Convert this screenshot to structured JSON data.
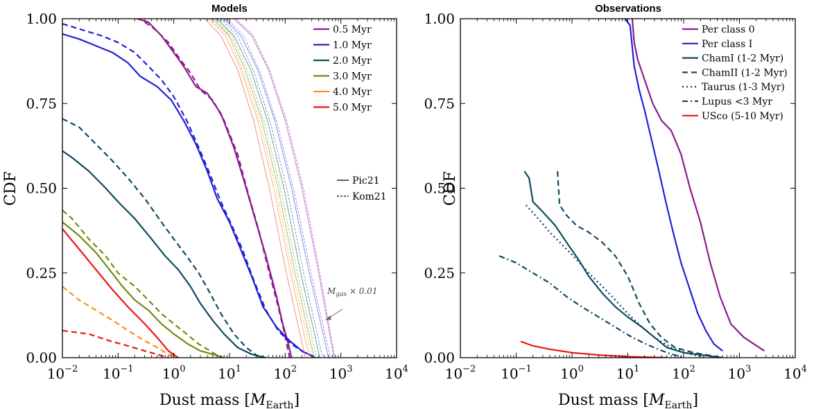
{
  "chart_data": [
    {
      "type": "line",
      "title": "Models",
      "xlabel_prefix": "Dust mass [",
      "xlabel_sym": "M",
      "xlabel_sub": "Earth",
      "xlabel_suffix": "]",
      "ylabel": "CDF",
      "xscale": "log",
      "xlim": [
        0.01,
        10000
      ],
      "ylim": [
        0,
        1
      ],
      "xtick_exponents": [
        "−2",
        "−1",
        "0",
        "1",
        "2",
        "3",
        "4"
      ],
      "ytick_labels": [
        "0.00",
        "0.25",
        "0.50",
        "0.75",
        "1.00"
      ],
      "yticks": [
        0,
        0.25,
        0.5,
        0.75,
        1.0
      ],
      "legend": [
        {
          "label": "0.5 Myr",
          "color": "#8B1A8B"
        },
        {
          "label": "1.0 Myr",
          "color": "#1F1FD6"
        },
        {
          "label": "2.0 Myr",
          "color": "#0E4A5E"
        },
        {
          "label": "3.0 Myr",
          "color": "#6B8E10"
        },
        {
          "label": "4.0 Myr",
          "color": "#FF8C1A"
        },
        {
          "label": "5.0 Myr",
          "color": "#EE1111"
        }
      ],
      "style_legend": [
        {
          "label": "Pic21",
          "linestyle": "solid"
        },
        {
          "label": "Kom21",
          "linestyle": "dashed"
        }
      ],
      "annotation": {
        "sym": "M",
        "sub": "gas",
        "text": "× 0.01"
      },
      "series": [
        {
          "name": "0.5 Myr",
          "model": "Pic21",
          "color": "#8B1A8B",
          "dash": "solid",
          "x": [
            0.22,
            0.35,
            0.6,
            1.0,
            1.5,
            2.5,
            4,
            7,
            12,
            20,
            30,
            45,
            70,
            90,
            110,
            130
          ],
          "y": [
            1.0,
            0.99,
            0.95,
            0.9,
            0.86,
            0.8,
            0.78,
            0.72,
            0.62,
            0.5,
            0.4,
            0.3,
            0.18,
            0.1,
            0.05,
            0.0
          ]
        },
        {
          "name": "0.5 Myr",
          "model": "Kom21",
          "color": "#8B1A8B",
          "dash": "dashed",
          "x": [
            0.3,
            0.45,
            0.8,
            1.3,
            2.0,
            3,
            5,
            8,
            14,
            22,
            33,
            50,
            75,
            95,
            120
          ],
          "y": [
            0.99,
            0.97,
            0.93,
            0.88,
            0.84,
            0.79,
            0.76,
            0.7,
            0.6,
            0.48,
            0.38,
            0.26,
            0.15,
            0.08,
            0.0
          ]
        },
        {
          "name": "1.0 Myr",
          "model": "Pic21",
          "color": "#1F1FD6",
          "dash": "solid",
          "x": [
            0.01,
            0.02,
            0.04,
            0.08,
            0.15,
            0.25,
            0.5,
            0.9,
            1.5,
            2.5,
            4,
            6,
            10,
            15,
            25,
            40,
            70,
            120,
            200,
            350
          ],
          "y": [
            0.955,
            0.94,
            0.92,
            0.9,
            0.87,
            0.83,
            0.8,
            0.76,
            0.7,
            0.63,
            0.55,
            0.47,
            0.4,
            0.33,
            0.24,
            0.15,
            0.09,
            0.05,
            0.02,
            0.0
          ]
        },
        {
          "name": "1.0 Myr",
          "model": "Kom21",
          "color": "#1F1FD6",
          "dash": "dashed",
          "x": [
            0.01,
            0.02,
            0.05,
            0.1,
            0.2,
            0.35,
            0.6,
            1.0,
            1.7,
            2.8,
            4.5,
            7,
            11,
            17,
            27,
            45,
            75,
            130,
            220,
            380
          ],
          "y": [
            0.985,
            0.97,
            0.95,
            0.93,
            0.9,
            0.86,
            0.82,
            0.77,
            0.7,
            0.62,
            0.54,
            0.46,
            0.39,
            0.32,
            0.23,
            0.14,
            0.08,
            0.04,
            0.015,
            0.0
          ]
        },
        {
          "name": "2.0 Myr",
          "model": "Pic21",
          "color": "#0E4A5E",
          "dash": "solid",
          "x": [
            0.01,
            0.015,
            0.03,
            0.06,
            0.1,
            0.2,
            0.4,
            0.7,
            1.2,
            2.0,
            3,
            5,
            8,
            14,
            25,
            45
          ],
          "y": [
            0.61,
            0.59,
            0.55,
            0.5,
            0.46,
            0.41,
            0.35,
            0.3,
            0.26,
            0.21,
            0.16,
            0.11,
            0.07,
            0.03,
            0.01,
            0.0
          ]
        },
        {
          "name": "2.0 Myr",
          "model": "Kom21",
          "color": "#0E4A5E",
          "dash": "dashed",
          "x": [
            0.01,
            0.02,
            0.04,
            0.08,
            0.15,
            0.3,
            0.6,
            1.0,
            1.7,
            2.8,
            4.5,
            7,
            12,
            20,
            35
          ],
          "y": [
            0.705,
            0.68,
            0.63,
            0.58,
            0.53,
            0.47,
            0.4,
            0.35,
            0.3,
            0.25,
            0.19,
            0.13,
            0.07,
            0.03,
            0.0
          ]
        },
        {
          "name": "3.0 Myr",
          "model": "Pic21",
          "color": "#6B8E10",
          "dash": "solid",
          "x": [
            0.01,
            0.02,
            0.04,
            0.07,
            0.12,
            0.2,
            0.35,
            0.6,
            1.0,
            1.8,
            3,
            5,
            8
          ],
          "y": [
            0.4,
            0.36,
            0.31,
            0.26,
            0.21,
            0.17,
            0.14,
            0.1,
            0.07,
            0.04,
            0.02,
            0.01,
            0.0
          ]
        },
        {
          "name": "3.0 Myr",
          "model": "Kom21",
          "color": "#6B8E10",
          "dash": "dashed",
          "x": [
            0.01,
            0.015,
            0.03,
            0.06,
            0.1,
            0.2,
            0.35,
            0.6,
            1.0,
            1.7,
            2.8,
            4.5,
            7
          ],
          "y": [
            0.435,
            0.41,
            0.35,
            0.3,
            0.25,
            0.21,
            0.17,
            0.13,
            0.1,
            0.07,
            0.04,
            0.02,
            0.0
          ]
        },
        {
          "name": "4.0 Myr",
          "model": "Kom21",
          "color": "#FF8C1A",
          "dash": "dashed",
          "x": [
            0.01,
            0.02,
            0.04,
            0.08,
            0.15,
            0.3,
            0.5,
            0.8,
            1.2
          ],
          "y": [
            0.21,
            0.17,
            0.14,
            0.11,
            0.08,
            0.05,
            0.03,
            0.01,
            0.0
          ]
        },
        {
          "name": "5.0 Myr",
          "model": "Pic21",
          "color": "#EE1111",
          "dash": "solid",
          "x": [
            0.01,
            0.02,
            0.04,
            0.08,
            0.15,
            0.3,
            0.5,
            0.8,
            1.2
          ],
          "y": [
            0.38,
            0.32,
            0.26,
            0.2,
            0.15,
            0.1,
            0.06,
            0.02,
            0.0
          ]
        },
        {
          "name": "5.0 Myr",
          "model": "Kom21",
          "color": "#EE1111",
          "dash": "dashed",
          "x": [
            0.01,
            0.03,
            0.07,
            0.15,
            0.3,
            0.5,
            0.8
          ],
          "y": [
            0.08,
            0.07,
            0.05,
            0.035,
            0.02,
            0.01,
            0.0
          ]
        },
        {
          "name": "Mgas×0.01 0.5 Myr",
          "color": "#B870C8",
          "dash": "thin",
          "x": [
            12,
            25,
            50,
            100,
            200,
            400,
            750
          ],
          "y": [
            1.0,
            0.95,
            0.85,
            0.7,
            0.5,
            0.25,
            0.0
          ]
        },
        {
          "name": "Mgas×0.01 0.5 Myr",
          "color": "#B870C8",
          "dash": "thindash",
          "x": [
            13,
            27,
            55,
            110,
            220,
            430,
            780
          ],
          "y": [
            1.0,
            0.95,
            0.84,
            0.69,
            0.49,
            0.24,
            0.0
          ]
        },
        {
          "name": "Mgas×0.01 1.0 Myr",
          "color": "#7D7DEE",
          "dash": "thin",
          "x": [
            8,
            16,
            32,
            65,
            130,
            270,
            600
          ],
          "y": [
            1.0,
            0.95,
            0.85,
            0.7,
            0.5,
            0.25,
            0.0
          ]
        },
        {
          "name": "Mgas×0.01 1.0 Myr",
          "color": "#7D7DEE",
          "dash": "thindash",
          "x": [
            9,
            18,
            36,
            72,
            145,
            300,
            650
          ],
          "y": [
            1.0,
            0.95,
            0.84,
            0.69,
            0.49,
            0.24,
            0.0
          ]
        },
        {
          "name": "Mgas×0.01 2.0 Myr",
          "color": "#5E8E9C",
          "dash": "thin",
          "x": [
            6,
            12,
            24,
            48,
            95,
            190,
            420
          ],
          "y": [
            1.0,
            0.95,
            0.85,
            0.7,
            0.5,
            0.25,
            0.0
          ]
        },
        {
          "name": "Mgas×0.01 2.0 Myr",
          "color": "#5E8E9C",
          "dash": "thindash",
          "x": [
            7,
            14,
            28,
            55,
            110,
            220,
            470
          ],
          "y": [
            1.0,
            0.95,
            0.84,
            0.69,
            0.49,
            0.24,
            0.0
          ]
        },
        {
          "name": "Mgas×0.01 3.0 Myr",
          "color": "#A2BC60",
          "dash": "thin",
          "x": [
            5,
            10,
            19,
            38,
            75,
            150,
            330
          ],
          "y": [
            1.0,
            0.95,
            0.85,
            0.7,
            0.5,
            0.25,
            0.0
          ]
        },
        {
          "name": "Mgas×0.01 3.0 Myr",
          "color": "#A2BC60",
          "dash": "thindash",
          "x": [
            5.5,
            11,
            22,
            43,
            85,
            170,
            370
          ],
          "y": [
            1.0,
            0.95,
            0.84,
            0.69,
            0.49,
            0.24,
            0.0
          ]
        },
        {
          "name": "Mgas×0.01 4.0 Myr",
          "color": "#F5B36A",
          "dash": "thin",
          "x": [
            4.2,
            8.5,
            16,
            32,
            62,
            125,
            270
          ],
          "y": [
            1.0,
            0.95,
            0.85,
            0.7,
            0.5,
            0.25,
            0.0
          ]
        },
        {
          "name": "Mgas×0.01 4.0 Myr",
          "color": "#F5B36A",
          "dash": "thindash",
          "x": [
            4.6,
            9.5,
            18,
            36,
            70,
            140,
            300
          ],
          "y": [
            1.0,
            0.95,
            0.84,
            0.69,
            0.49,
            0.24,
            0.0
          ]
        },
        {
          "name": "Mgas×0.01 5.0 Myr",
          "color": "#F28080",
          "dash": "thin",
          "x": [
            3.6,
            7,
            14,
            27,
            52,
            105,
            230
          ],
          "y": [
            1.0,
            0.95,
            0.85,
            0.7,
            0.5,
            0.25,
            0.0
          ]
        }
      ]
    },
    {
      "type": "line",
      "title": "Observations",
      "xlabel_prefix": "Dust mass [",
      "xlabel_sym": "M",
      "xlabel_sub": "Earth",
      "xlabel_suffix": "]",
      "ylabel": "CDF",
      "xscale": "log",
      "xlim": [
        0.01,
        10000
      ],
      "ylim": [
        0,
        1
      ],
      "xtick_exponents": [
        "−2",
        "−1",
        "0",
        "1",
        "2",
        "3",
        "4"
      ],
      "ytick_labels": [
        "0.00",
        "0.25",
        "0.50",
        "0.75",
        "1.00"
      ],
      "yticks": [
        0,
        0.25,
        0.5,
        0.75,
        1.0
      ],
      "legend": [
        {
          "label": "Per class 0",
          "color": "#8B1A8B",
          "dash": "solid"
        },
        {
          "label": "Per class I",
          "color": "#1F1FD6",
          "dash": "solid"
        },
        {
          "label": "ChamI (1-2 Myr)",
          "color": "#0E4A5E",
          "dash": "solid"
        },
        {
          "label": "ChamII (1-2 Myr)",
          "color": "#0E4A5E",
          "dash": "dashed"
        },
        {
          "label": "Taurus (1-3 Myr)",
          "color": "#0E4A5E",
          "dash": "dotted"
        },
        {
          "label": "Lupus <3 Myr",
          "color": "#0E4A5E",
          "dash": "dashdot"
        },
        {
          "label": "USco (5-10 Myr)",
          "color": "#EE1111",
          "dash": "solid"
        }
      ],
      "series": [
        {
          "name": "Per class 0",
          "color": "#8B1A8B",
          "dash": "solid",
          "x": [
            12,
            13,
            15,
            20,
            28,
            40,
            60,
            90,
            130,
            200,
            300,
            450,
            700,
            1200,
            2800
          ],
          "y": [
            1.0,
            0.93,
            0.88,
            0.82,
            0.75,
            0.7,
            0.67,
            0.6,
            0.5,
            0.4,
            0.28,
            0.18,
            0.1,
            0.06,
            0.02
          ]
        },
        {
          "name": "Per class I",
          "color": "#1F1FD6",
          "dash": "solid",
          "x": [
            9,
            11,
            13,
            16,
            20,
            26,
            35,
            48,
            65,
            90,
            130,
            180,
            250,
            350,
            500
          ],
          "y": [
            1.0,
            0.98,
            0.86,
            0.79,
            0.73,
            0.65,
            0.56,
            0.46,
            0.37,
            0.28,
            0.2,
            0.13,
            0.08,
            0.04,
            0.02
          ]
        },
        {
          "name": "ChamI (1-2 Myr)",
          "color": "#0E4A5E",
          "dash": "solid",
          "x": [
            0.14,
            0.17,
            0.2,
            0.3,
            0.5,
            0.8,
            1.3,
            2,
            3.5,
            6,
            10,
            18,
            30,
            50,
            100,
            500
          ],
          "y": [
            0.55,
            0.53,
            0.46,
            0.43,
            0.39,
            0.34,
            0.29,
            0.24,
            0.19,
            0.15,
            0.12,
            0.09,
            0.06,
            0.03,
            0.015,
            0.0
          ]
        },
        {
          "name": "ChamII (1-2 Myr)",
          "color": "#0E4A5E",
          "dash": "dashed",
          "x": [
            0.55,
            0.6,
            0.8,
            1.2,
            2,
            3.5,
            6,
            10,
            16,
            25,
            40,
            70,
            150,
            500
          ],
          "y": [
            0.55,
            0.45,
            0.42,
            0.39,
            0.37,
            0.34,
            0.3,
            0.24,
            0.16,
            0.1,
            0.06,
            0.03,
            0.015,
            0.0
          ]
        },
        {
          "name": "Taurus (1-3 Myr)",
          "color": "#0E4A5E",
          "dash": "dotted",
          "x": [
            0.15,
            0.25,
            0.4,
            0.7,
            1.2,
            2,
            3.5,
            6,
            10,
            18,
            30,
            60,
            120,
            250
          ],
          "y": [
            0.45,
            0.41,
            0.37,
            0.33,
            0.29,
            0.25,
            0.21,
            0.17,
            0.13,
            0.09,
            0.06,
            0.03,
            0.012,
            0.0
          ]
        },
        {
          "name": "Lupus <3 Myr",
          "color": "#0E4A5E",
          "dash": "dashdot",
          "x": [
            0.05,
            0.1,
            0.2,
            0.4,
            0.8,
            1.5,
            3,
            6,
            12,
            25,
            50,
            100
          ],
          "y": [
            0.3,
            0.28,
            0.25,
            0.22,
            0.18,
            0.15,
            0.12,
            0.09,
            0.06,
            0.035,
            0.015,
            0.0
          ]
        },
        {
          "name": "USco (5-10 Myr)",
          "color": "#EE1111",
          "dash": "solid",
          "x": [
            0.12,
            0.2,
            0.4,
            1.0,
            3,
            10,
            50
          ],
          "y": [
            0.048,
            0.035,
            0.025,
            0.015,
            0.008,
            0.003,
            0.0
          ]
        }
      ]
    }
  ]
}
